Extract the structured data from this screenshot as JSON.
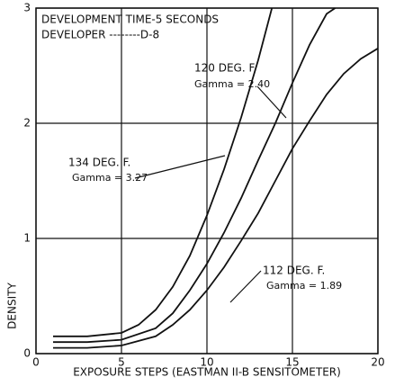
{
  "chart_data": {
    "type": "line",
    "annotations": [
      "DEVELOPMENT TIME-5 SECONDS",
      "DEVELOPER --------D-8"
    ],
    "x_label": "EXPOSURE STEPS (EASTMAN II-B SENSITOMETER)",
    "y_label": "DENSITY",
    "xlim": [
      0,
      20
    ],
    "xticks": [
      0,
      5,
      10,
      15,
      20
    ],
    "ylim": [
      0,
      3
    ],
    "yticks": [
      0,
      1,
      2,
      3
    ],
    "grid": true,
    "series": [
      {
        "name": "120 DEG. F.",
        "gamma_label": "Gamma = 2.40",
        "color": "#111111",
        "x": [
          1,
          3,
          5,
          7,
          8,
          9,
          10,
          11,
          12,
          13,
          14,
          15,
          16,
          17,
          17.5
        ],
        "values": [
          0.1,
          0.1,
          0.12,
          0.22,
          0.35,
          0.55,
          0.78,
          1.05,
          1.35,
          1.68,
          2.0,
          2.35,
          2.68,
          2.95,
          3.0
        ]
      },
      {
        "name": "134 DEG. F.",
        "gamma_label": "Gamma = 3.27",
        "color": "#111111",
        "x": [
          1,
          3,
          5,
          6,
          7,
          8,
          9,
          10,
          11,
          12,
          13,
          13.8
        ],
        "values": [
          0.15,
          0.15,
          0.18,
          0.25,
          0.38,
          0.58,
          0.85,
          1.2,
          1.6,
          2.05,
          2.55,
          3.0
        ]
      },
      {
        "name": "112 DEG. F.",
        "gamma_label": "Gamma = 1.89",
        "color": "#111111",
        "x": [
          1,
          3,
          5,
          7,
          8,
          9,
          10,
          11,
          12,
          13,
          14,
          15,
          16,
          17,
          18,
          19,
          20
        ],
        "values": [
          0.05,
          0.05,
          0.07,
          0.15,
          0.25,
          0.38,
          0.55,
          0.75,
          0.98,
          1.22,
          1.5,
          1.78,
          2.02,
          2.25,
          2.43,
          2.56,
          2.65
        ]
      }
    ]
  }
}
